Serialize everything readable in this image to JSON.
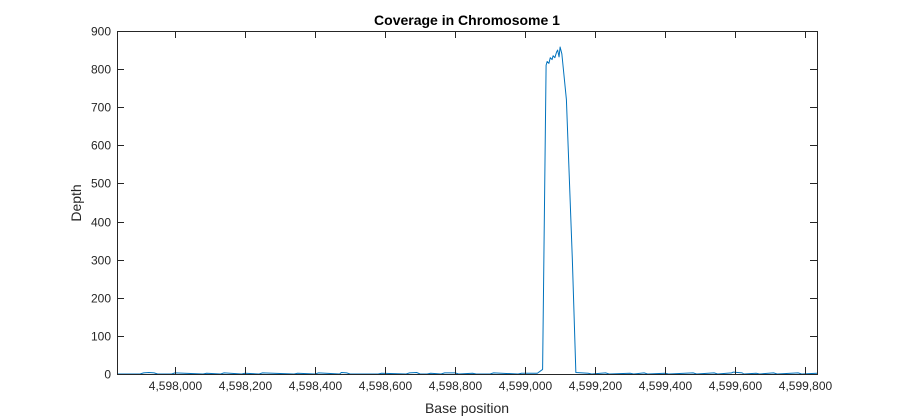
{
  "chart_data": {
    "type": "line",
    "title": "Coverage in Chromosome 1",
    "xlabel": "Base position",
    "ylabel": "Depth",
    "xlim": [
      4597834,
      4599834
    ],
    "ylim": [
      0,
      900
    ],
    "x_ticks": [
      {
        "value": 4598000,
        "label": "4,598,000"
      },
      {
        "value": 4598200,
        "label": "4,598,200"
      },
      {
        "value": 4598400,
        "label": "4,598,400"
      },
      {
        "value": 4598600,
        "label": "4,598,600"
      },
      {
        "value": 4598800,
        "label": "4,598,800"
      },
      {
        "value": 4599000,
        "label": "4,599,000"
      },
      {
        "value": 4599200,
        "label": "4,599,200"
      },
      {
        "value": 4599400,
        "label": "4,599,400"
      },
      {
        "value": 4599600,
        "label": "4,599,600"
      },
      {
        "value": 4599800,
        "label": "4,599,800"
      }
    ],
    "y_ticks": [
      {
        "value": 0,
        "label": "0"
      },
      {
        "value": 100,
        "label": "100"
      },
      {
        "value": 200,
        "label": "200"
      },
      {
        "value": 300,
        "label": "300"
      },
      {
        "value": 400,
        "label": "400"
      },
      {
        "value": 500,
        "label": "500"
      },
      {
        "value": 600,
        "label": "600"
      },
      {
        "value": 700,
        "label": "700"
      },
      {
        "value": 800,
        "label": "800"
      },
      {
        "value": 900,
        "label": "900"
      }
    ],
    "grid": false,
    "line_color": "#0072BD",
    "axis_color": "#262626",
    "series": [
      {
        "x": [
          4597834,
          4597900,
          4597910,
          4597925,
          4597940,
          4597950,
          4597990,
          4598000,
          4598080,
          4598090,
          4598130,
          4598140,
          4598190,
          4598200,
          4598240,
          4598250,
          4598340,
          4598350,
          4598400,
          4598410,
          4598470,
          4598475,
          4598490,
          4598500,
          4598580,
          4598590,
          4598660,
          4598670,
          4598690,
          4598700,
          4598720,
          4598730,
          4598760,
          4598770,
          4598800,
          4598810,
          4598850,
          4598860,
          4598900,
          4598910,
          4598980,
          4598990,
          4599035,
          4599050,
          4599060,
          4599063,
          4599068,
          4599072,
          4599077,
          4599080,
          4599085,
          4599090,
          4599093,
          4599097,
          4599100,
          4599105,
          4599118,
          4599135,
          4599145,
          4599180,
          4599190,
          4599230,
          4599240,
          4599300,
          4599310,
          4599340,
          4599350,
          4599400,
          4599410,
          4599480,
          4599490,
          4599540,
          4599550,
          4599590,
          4599595,
          4599620,
          4599625,
          4599660,
          4599670,
          4599710,
          4599720,
          4599780,
          4599790,
          4599834
        ],
        "y": [
          0,
          0,
          3,
          4,
          3,
          0,
          0,
          3,
          0,
          2,
          0,
          3,
          0,
          2,
          0,
          3,
          0,
          2,
          0,
          3,
          0,
          4,
          3,
          0,
          0,
          2,
          0,
          3,
          4,
          0,
          0,
          2,
          0,
          3,
          3,
          0,
          2,
          0,
          0,
          3,
          0,
          2,
          2,
          12,
          810,
          820,
          815,
          830,
          825,
          835,
          830,
          845,
          850,
          832,
          858,
          840,
          720,
          300,
          4,
          2,
          0,
          3,
          0,
          2,
          0,
          3,
          0,
          2,
          0,
          3,
          0,
          3,
          0,
          3,
          5,
          3,
          0,
          2,
          0,
          3,
          0,
          3,
          0,
          2
        ]
      }
    ]
  }
}
